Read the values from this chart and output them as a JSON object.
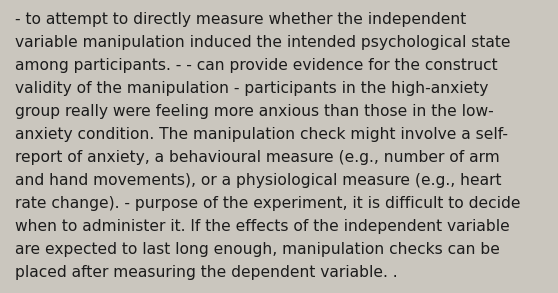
{
  "lines": [
    "- to attempt to directly measure whether the independent",
    "variable manipulation induced the intended psychological state",
    "among participants. - - can provide evidence for the construct",
    "validity of the manipulation - participants in the high-anxiety",
    "group really were feeling more anxious than those in the low-",
    "anxiety condition. The manipulation check might involve a self-",
    "report of anxiety, a behavioural measure (e.g., number of arm",
    "and hand movements), or a physiological measure (e.g., heart",
    "rate change). - purpose of the experiment, it is difficult to decide",
    "when to administer it. If the effects of the independent variable",
    "are expected to last long enough, manipulation checks can be",
    "placed after measuring the dependent variable. ."
  ],
  "bg_color": "#cac6be",
  "text_color": "#1c1c1c",
  "font_size": 11.2,
  "fig_width": 5.58,
  "fig_height": 2.93,
  "dpi": 100
}
